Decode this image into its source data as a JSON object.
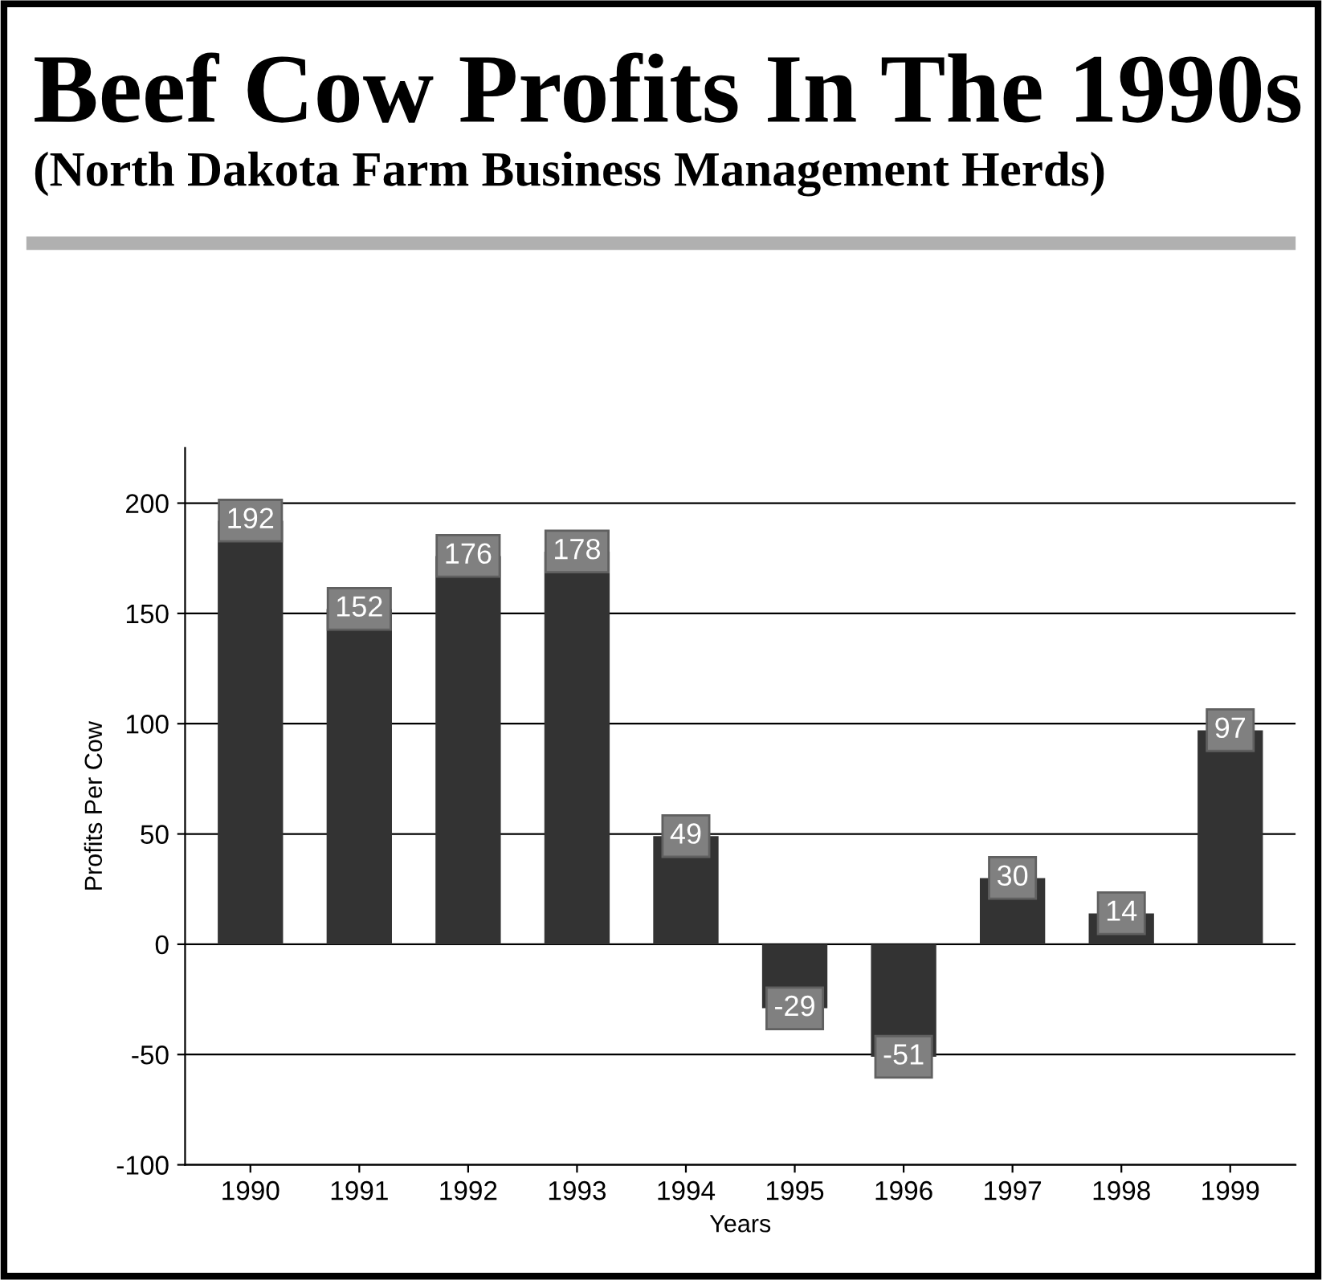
{
  "chart_data": {
    "type": "bar",
    "title": "Beef Cow Profits In The 1990s",
    "subtitle": "(North Dakota Farm Business Management Herds)",
    "xlabel": "Years",
    "ylabel": "Profits Per Cow",
    "categories": [
      "1990",
      "1991",
      "1992",
      "1993",
      "1994",
      "1995",
      "1996",
      "1997",
      "1998",
      "1999"
    ],
    "values": [
      192,
      152,
      176,
      178,
      49,
      -29,
      -51,
      30,
      14,
      97
    ],
    "color": "#333333",
    "ylim": [
      -100,
      225
    ],
    "yticks": [
      -100,
      -50,
      0,
      50,
      100,
      150,
      200
    ],
    "grid": "y",
    "data_labels": true
  }
}
